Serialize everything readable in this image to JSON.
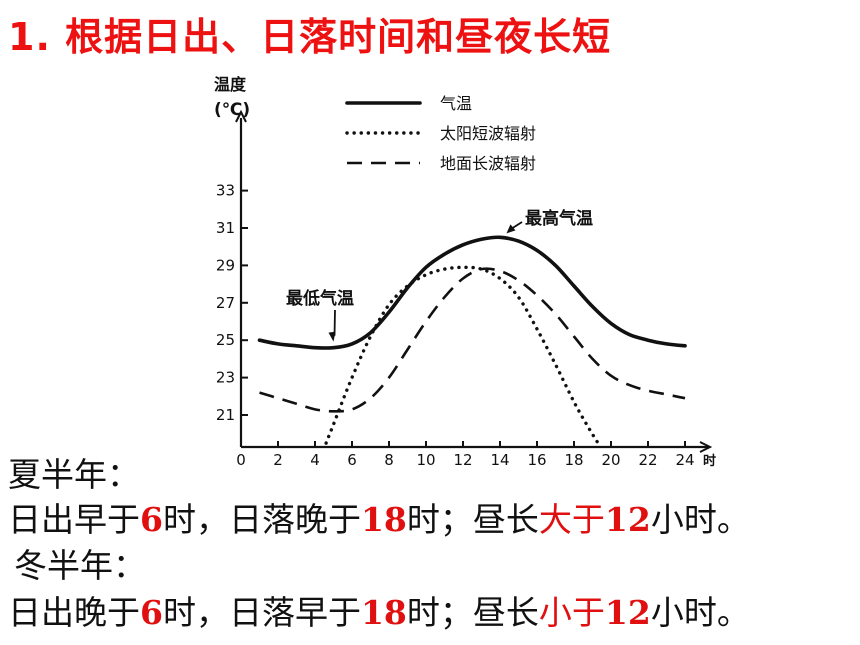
{
  "slide": {
    "title": "1. 根据日出、日落时间和昼夜长短"
  },
  "chart_data": {
    "type": "line",
    "ylabel_line1": "温度",
    "ylabel_line2": "(℃)",
    "xunit": "时",
    "x_ticks": [
      0,
      2,
      4,
      6,
      8,
      10,
      12,
      14,
      16,
      18,
      20,
      22,
      24
    ],
    "y_ticks": [
      21,
      23,
      25,
      27,
      29,
      31,
      33
    ],
    "xlim": [
      0,
      24
    ],
    "ylim": [
      19.5,
      35
    ],
    "legend_position": "top",
    "series": [
      {
        "name": "气温",
        "style": "solid",
        "x": [
          1,
          2,
          3,
          4,
          5,
          6,
          7,
          8,
          9,
          10,
          11,
          12,
          13,
          14,
          15,
          16,
          17,
          18,
          19,
          20,
          21,
          22,
          23,
          24
        ],
        "y": [
          25.0,
          24.8,
          24.7,
          24.6,
          24.6,
          24.8,
          25.4,
          26.5,
          27.8,
          28.9,
          29.6,
          30.1,
          30.4,
          30.5,
          30.3,
          29.8,
          29.0,
          27.9,
          26.8,
          25.9,
          25.3,
          25.0,
          24.8,
          24.7
        ]
      },
      {
        "name": "太阳短波辐射",
        "style": "dotted",
        "x": [
          4.6,
          5,
          6,
          7,
          8,
          9,
          10,
          11,
          12,
          13,
          14,
          15,
          16,
          17,
          18,
          18.8,
          19.3
        ],
        "y": [
          19.5,
          20.5,
          23.0,
          25.2,
          26.9,
          27.9,
          28.5,
          28.8,
          28.9,
          28.8,
          28.3,
          27.3,
          25.6,
          23.7,
          21.7,
          20.3,
          19.5
        ]
      },
      {
        "name": "地面长波辐射",
        "style": "dashed",
        "x": [
          1,
          2,
          3,
          4,
          5,
          6,
          7,
          8,
          9,
          10,
          11,
          12,
          13,
          14,
          15,
          16,
          17,
          18,
          19,
          20,
          21,
          22,
          23,
          24
        ],
        "y": [
          22.2,
          21.9,
          21.6,
          21.3,
          21.2,
          21.3,
          21.9,
          23.0,
          24.5,
          26.0,
          27.3,
          28.3,
          28.8,
          28.7,
          28.2,
          27.4,
          26.4,
          25.2,
          24.0,
          23.1,
          22.6,
          22.3,
          22.1,
          21.9
        ]
      }
    ],
    "annotations": [
      {
        "text": "最高气温",
        "x": 13.7,
        "y": 30.5
      },
      {
        "text": "最低气温",
        "x": 5.0,
        "y": 24.6
      }
    ]
  },
  "notes": {
    "summer_heading": "夏半年：",
    "summer_p1": "日出早于",
    "summer_n1": "6",
    "summer_p2": "时，日落晚于",
    "summer_n2": "18",
    "summer_p3": "时；昼长",
    "summer_red": "大于",
    "summer_n3": "12",
    "summer_p4": "小时。",
    "winter_heading": "冬半年：",
    "winter_p1": "日出晚于",
    "winter_n1": "6",
    "winter_p2": "时，日落早于",
    "winter_n2": "18",
    "winter_p3": "时；昼长",
    "winter_red": "小于",
    "winter_n3": "12",
    "winter_p4": "小时。"
  }
}
